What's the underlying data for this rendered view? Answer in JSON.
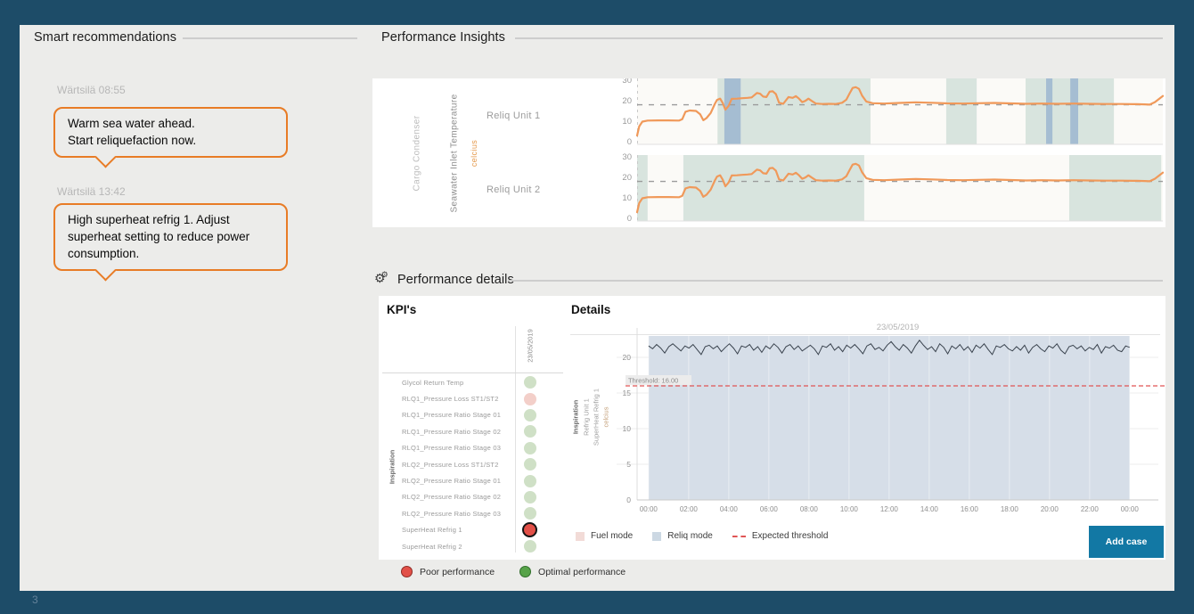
{
  "page": {
    "number": "3"
  },
  "colors": {
    "frame": "#1d4c68",
    "content_bg": "#ececea",
    "accent_orange": "#e87c26",
    "line_orange": "#f0995a",
    "band_reliq_green": "#aecabf",
    "band_blue": "#7c9cc9",
    "details_band_blue": "#d6dee8",
    "threshold_red": "#e05555",
    "kpi_optimal": "#cfe0c6",
    "kpi_poor": "#e25048",
    "kpi_poor_light": "#f3cfc9",
    "button_teal": "#1278a4"
  },
  "smart_recommendations": {
    "title": "Smart recommendations",
    "messages": [
      {
        "meta": "Wärtsilä 08:55",
        "text": "Warm sea water ahead.\nStart reliquefaction now."
      },
      {
        "meta": "Wärtsilä 13:42",
        "text": "High superheat refrig 1. Adjust\nsuperheat setting to reduce power\nconsumption."
      }
    ]
  },
  "performance_insights": {
    "title": "Performance Insights"
  },
  "performance_details": {
    "title": "Performance details",
    "kpis": {
      "title": "KPI's",
      "group_label": "Inspiration",
      "column_header": "23/05/2019",
      "rows": [
        {
          "label": "Glycol Return Temp",
          "status": "optimal"
        },
        {
          "label": "RLQ1_Pressure Loss ST1/ST2",
          "status": "poor_light"
        },
        {
          "label": "RLQ1_Pressure Ratio Stage 01",
          "status": "optimal"
        },
        {
          "label": "RLQ1_Pressure Ratio Stage 02",
          "status": "optimal"
        },
        {
          "label": "RLQ1_Pressure Ratio Stage 03",
          "status": "optimal"
        },
        {
          "label": "RLQ2_Pressure Loss ST1/ST2",
          "status": "optimal"
        },
        {
          "label": "RLQ2_Pressure Ratio Stage 01",
          "status": "optimal"
        },
        {
          "label": "RLQ2_Pressure Ratio Stage 02",
          "status": "optimal"
        },
        {
          "label": "RLQ2_Pressure Ratio Stage 03",
          "status": "optimal"
        },
        {
          "label": "SuperHeat Refrig 1",
          "status": "poor_selected"
        },
        {
          "label": "SuperHeat Refrig 2",
          "status": "optimal"
        }
      ],
      "legend": [
        {
          "label": "Poor performance",
          "swatch": "poor"
        },
        {
          "label": "Optimal performance",
          "swatch": "optimal"
        }
      ]
    },
    "details": {
      "title": "Details",
      "legend": [
        {
          "label": "Fuel mode",
          "swatch": "fuel"
        },
        {
          "label": "Reliq mode",
          "swatch": "reliq"
        },
        {
          "label": "Expected threshold",
          "swatch": "threshold"
        }
      ],
      "add_case_label": "Add case"
    }
  },
  "chart_data": [
    {
      "name": "performance-insights",
      "type": "line",
      "panels": [
        "Reliq Unit 1",
        "Reliq Unit 2"
      ],
      "ylabel_outer": "Cargo Condenser",
      "ylabel": "Seawater Inlet Temperature",
      "yunit": "celcius",
      "ylim": [
        0,
        30
      ],
      "yticks": [
        0,
        10,
        20,
        30
      ],
      "expected_threshold": 18,
      "series_x": [
        0,
        0.004,
        0.01,
        0.02,
        0.04,
        0.06,
        0.08,
        0.086,
        0.092,
        0.1,
        0.112,
        0.12,
        0.126,
        0.132,
        0.14,
        0.148,
        0.152,
        0.158,
        0.163,
        0.168,
        0.174,
        0.18,
        0.19,
        0.2,
        0.21,
        0.218,
        0.228,
        0.234,
        0.24,
        0.246,
        0.252,
        0.258,
        0.264,
        0.27,
        0.278,
        0.288,
        0.296,
        0.302,
        0.308,
        0.314,
        0.32,
        0.326,
        0.332,
        0.34,
        0.352,
        0.365,
        0.378,
        0.39,
        0.398,
        0.404,
        0.41,
        0.416,
        0.422,
        0.428,
        0.436,
        0.448,
        0.47,
        0.5,
        0.53,
        0.56,
        0.59,
        0.62,
        0.65,
        0.68,
        0.71,
        0.74,
        0.77,
        0.8,
        0.83,
        0.86,
        0.89,
        0.92,
        0.95,
        0.965,
        0.975,
        0.985,
        1.0
      ],
      "series_y": [
        3,
        7.5,
        9.8,
        10.3,
        10.4,
        10.4,
        10.3,
        11.0,
        14.6,
        15.2,
        15.0,
        13.4,
        10.5,
        11.5,
        14.0,
        18.5,
        20.4,
        21.0,
        18.8,
        15.6,
        17.5,
        20.9,
        21.0,
        21.2,
        21.4,
        21.6,
        23.8,
        23.4,
        22.0,
        21.8,
        24.4,
        24.6,
        23.2,
        19.0,
        18.5,
        21.8,
        21.4,
        22.2,
        21.0,
        19.3,
        19.9,
        21.0,
        19.9,
        18.6,
        18.4,
        18.5,
        18.4,
        19.0,
        20.5,
        23.5,
        26.2,
        26.6,
        25.8,
        22.5,
        19.6,
        18.8,
        18.6,
        18.9,
        19.2,
        19.0,
        18.7,
        18.6,
        18.8,
        18.9,
        18.7,
        18.5,
        18.6,
        18.5,
        18.6,
        18.5,
        18.4,
        18.4,
        18.3,
        18.2,
        18.1,
        19.3,
        22.3
      ],
      "bands": [
        {
          "panel": 0,
          "kind": "reliq",
          "x": [
            0.153,
            0.444
          ]
        },
        {
          "panel": 0,
          "kind": "blue",
          "x": [
            0.166,
            0.197
          ]
        },
        {
          "panel": 0,
          "kind": "reliq",
          "x": [
            0.588,
            0.646
          ]
        },
        {
          "panel": 0,
          "kind": "reliq",
          "x": [
            0.739,
            0.907
          ]
        },
        {
          "panel": 0,
          "kind": "blue",
          "x": [
            0.778,
            0.79
          ]
        },
        {
          "panel": 0,
          "kind": "blue",
          "x": [
            0.824,
            0.839
          ]
        },
        {
          "panel": 1,
          "kind": "reliq",
          "x": [
            0.0,
            0.02
          ]
        },
        {
          "panel": 1,
          "kind": "reliq",
          "x": [
            0.088,
            0.432
          ]
        },
        {
          "panel": 1,
          "kind": "reliq",
          "x": [
            0.822,
            0.997
          ]
        }
      ]
    },
    {
      "name": "details",
      "type": "line",
      "title": "23/05/2019",
      "axis_labels": [
        "Inspiration",
        "Refrig Unit 1",
        "SuperHeat Refrig 1",
        "celcius"
      ],
      "ylim": [
        0,
        23
      ],
      "yticks": [
        0,
        5,
        10,
        15,
        20
      ],
      "xticks": [
        "00:00",
        "02:00",
        "04:00",
        "06:00",
        "08:00",
        "10:00",
        "12:00",
        "14:00",
        "16:00",
        "18:00",
        "20:00",
        "22:00",
        "00:00"
      ],
      "threshold": 16,
      "threshold_label": "Threshold: 16.00",
      "reliq_band": [
        0.022,
        0.945
      ],
      "values": [
        21.6,
        21.2,
        21.8,
        21.3,
        20.6,
        21.5,
        21.9,
        21.4,
        20.9,
        21.6,
        21.3,
        21.8,
        21.1,
        20.4,
        21.5,
        21.7,
        21.2,
        21.6,
        20.8,
        21.4,
        21.9,
        21.3,
        20.5,
        21.6,
        21.4,
        21.8,
        21.0,
        21.5,
        20.7,
        21.6,
        21.2,
        21.9,
        21.4,
        20.6,
        21.5,
        21.8,
        21.1,
        21.6,
        20.9,
        21.3,
        21.7,
        21.2,
        20.4,
        21.6,
        21.4,
        21.9,
        21.0,
        21.5,
        20.8,
        21.7,
        21.3,
        21.8,
        21.2,
        20.5,
        21.6,
        21.9,
        21.1,
        21.4,
        20.9,
        21.7,
        22.2,
        21.5,
        21.0,
        21.8,
        21.3,
        20.6,
        21.6,
        22.4,
        21.7,
        21.1,
        21.5,
        20.8,
        21.9,
        21.4,
        20.5,
        21.6,
        21.2,
        21.8,
        21.0,
        21.5,
        20.7,
        21.7,
        21.3,
        21.9,
        21.1,
        20.4,
        21.6,
        21.4,
        21.8,
        21.2,
        20.9,
        21.5,
        21.0,
        21.7,
        20.6,
        21.4,
        21.8,
        21.2,
        20.8,
        21.6,
        21.3,
        21.9,
        21.0,
        20.5,
        21.5,
        21.7,
        21.2,
        21.6,
        20.9,
        21.4,
        21.1,
        21.8,
        20.6,
        21.5,
        21.3,
        21.7,
        21.0,
        20.8,
        21.6,
        21.4
      ]
    }
  ]
}
